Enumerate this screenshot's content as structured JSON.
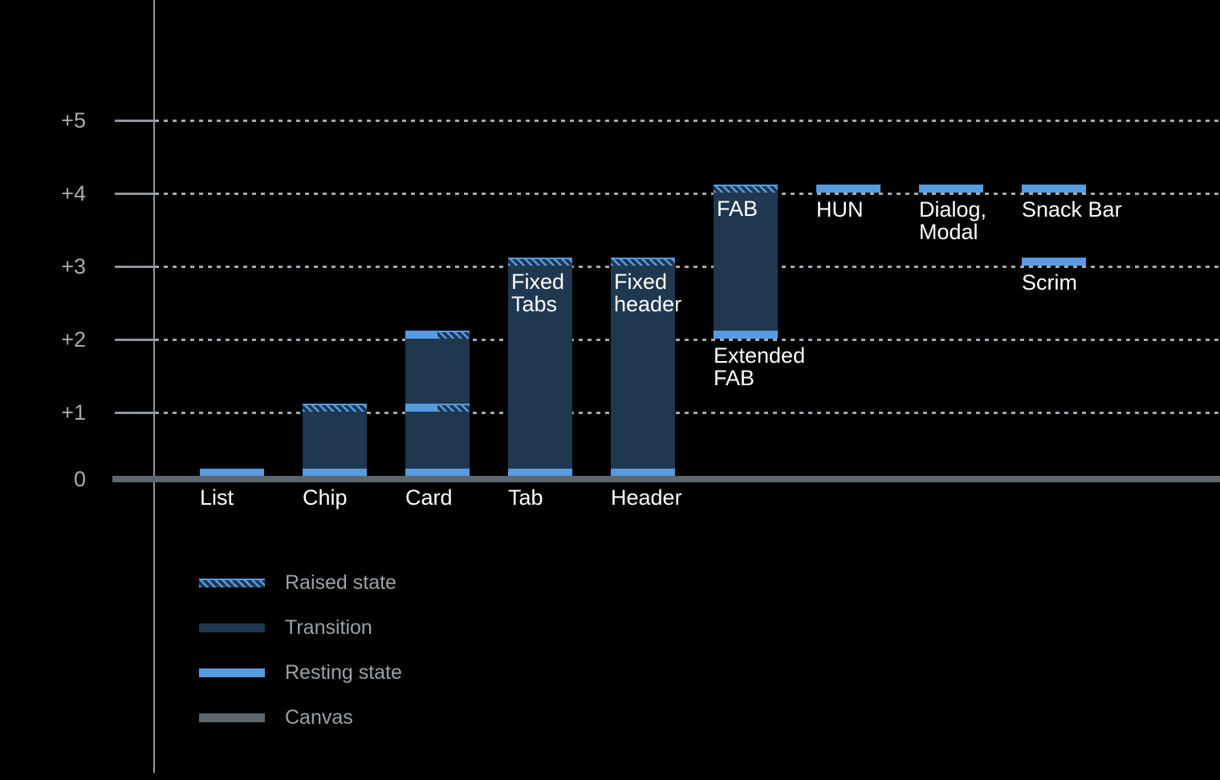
{
  "chart_data": {
    "type": "bar",
    "title": "",
    "theme": "dark",
    "description": "Elevation diagram: resting and raised elevation levels of UI components above the canvas",
    "y_axis": {
      "levels": [
        {
          "value": 5,
          "label": "+5"
        },
        {
          "value": 4,
          "label": "+4"
        },
        {
          "value": 3,
          "label": "+3"
        },
        {
          "value": 2,
          "label": "+2"
        },
        {
          "value": 1,
          "label": "+1"
        },
        {
          "value": 0,
          "label": "0"
        }
      ],
      "ylim": [
        0,
        5.5
      ],
      "grid": "dotted"
    },
    "columns": [
      {
        "key": "list",
        "baseline_label": "List",
        "bar": null,
        "markers": [
          {
            "level": 0,
            "style": "resting"
          }
        ]
      },
      {
        "key": "chip",
        "baseline_label": "Chip",
        "bar": {
          "top": 1,
          "bottom": 0
        },
        "markers": [
          {
            "level": 1,
            "style": "raised"
          },
          {
            "level": 0,
            "style": "resting"
          }
        ]
      },
      {
        "key": "card",
        "baseline_label": "Card",
        "bar": {
          "top": 2,
          "bottom": 0
        },
        "markers": [
          {
            "level": 2,
            "style": "split"
          },
          {
            "level": 1,
            "style": "split"
          },
          {
            "level": 0,
            "style": "resting"
          }
        ]
      },
      {
        "key": "tab",
        "baseline_label": "Tab",
        "bar": {
          "top": 3,
          "bottom": 0
        },
        "markers": [
          {
            "level": 3,
            "style": "raised"
          },
          {
            "level": 0,
            "style": "resting"
          }
        ],
        "inside_label": [
          "Fixed",
          "Tabs"
        ]
      },
      {
        "key": "header",
        "baseline_label": "Header",
        "bar": {
          "top": 3,
          "bottom": 0
        },
        "markers": [
          {
            "level": 3,
            "style": "raised"
          },
          {
            "level": 0,
            "style": "resting"
          }
        ],
        "inside_label": [
          "Fixed",
          "header"
        ]
      },
      {
        "key": "fab",
        "baseline_label": null,
        "bar": {
          "top": 4,
          "bottom": 2
        },
        "markers": [
          {
            "level": 4,
            "style": "raised"
          },
          {
            "level": 2,
            "style": "resting"
          }
        ],
        "inside_label": [
          "FAB"
        ],
        "float_labels": [
          {
            "level": 2,
            "lines": [
              "Extended",
              "FAB"
            ]
          }
        ]
      },
      {
        "key": "hun",
        "baseline_label": null,
        "bar": null,
        "markers": [
          {
            "level": 4,
            "style": "resting"
          }
        ],
        "float_labels": [
          {
            "level": 4,
            "lines": [
              "HUN"
            ]
          }
        ]
      },
      {
        "key": "dialog-modal",
        "baseline_label": null,
        "bar": null,
        "markers": [
          {
            "level": 4,
            "style": "resting"
          }
        ],
        "float_labels": [
          {
            "level": 4,
            "lines": [
              "Dialog,",
              "Modal"
            ]
          }
        ]
      },
      {
        "key": "snackbar-scrim",
        "baseline_label": null,
        "bar": null,
        "markers": [
          {
            "level": 4,
            "style": "resting"
          },
          {
            "level": 3,
            "style": "resting"
          }
        ],
        "float_labels": [
          {
            "level": 4,
            "lines": [
              "Snack Bar"
            ]
          },
          {
            "level": 3,
            "lines": [
              "Scrim"
            ]
          }
        ]
      }
    ],
    "legend_position": "bottom-left",
    "legend": [
      {
        "key": "raised-state",
        "label": "Raised state",
        "style": "raised"
      },
      {
        "key": "transition",
        "label": "Transition",
        "style": "transition"
      },
      {
        "key": "resting-state",
        "label": "Resting state",
        "style": "resting"
      },
      {
        "key": "canvas",
        "label": "Canvas",
        "style": "canvas"
      }
    ]
  },
  "colors": {
    "background": "#000000",
    "resting_blue": "#579BE1",
    "transition_navy": "#1F3850",
    "canvas_gray": "#5E6770",
    "axis_gray": "#8F969D",
    "grid_gray": "#A3A9AF",
    "axis_text": "#A7ACB1",
    "legend_text": "#9AA1A7",
    "bar_label": "#FFFFFF"
  }
}
